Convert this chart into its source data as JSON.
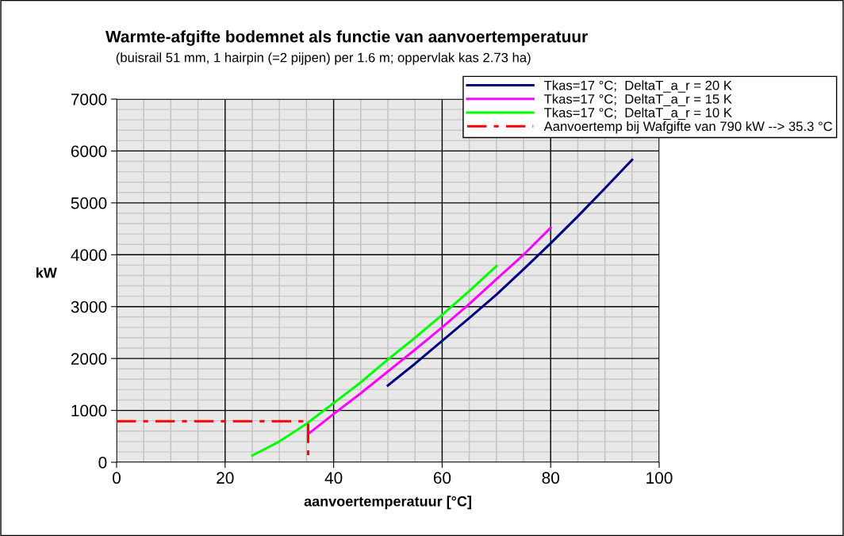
{
  "chart_data": {
    "type": "line",
    "title": "Warmte-afgifte bodemnet als functie van aanvoertemperatuur",
    "subtitle": "(buisrail 51 mm, 1 hairpin (=2 pijpen) per 1.6 m; oppervlak kas 2.73 ha)",
    "xlabel": "aanvoertemperatuur [°C]",
    "ylabel": "kW",
    "xlim": [
      0,
      100
    ],
    "xticks": [
      0,
      20,
      40,
      60,
      80,
      100
    ],
    "ylim": [
      0,
      7000
    ],
    "yticks": [
      0,
      1000,
      2000,
      3000,
      4000,
      5000,
      6000,
      7000
    ],
    "grid": true,
    "legend": "top right",
    "marker": "none",
    "series": [
      {
        "name": "Tkas=17 °C;  DeltaT_a_r = 20 K",
        "color": "#000080",
        "x": [
          50,
          55,
          60,
          65,
          70,
          75,
          80,
          85,
          90,
          95
        ],
        "values": [
          1480,
          1900,
          2340,
          2780,
          3230,
          3720,
          4220,
          4740,
          5280,
          5830
        ]
      },
      {
        "name": "Tkas=17 °C;  DeltaT_a_r = 15 K",
        "color": "#ff00ff",
        "x": [
          35.5,
          40,
          45,
          50,
          55,
          60,
          65,
          70,
          75,
          80
        ],
        "values": [
          560,
          930,
          1330,
          1750,
          2170,
          2600,
          3050,
          3530,
          4000,
          4520
        ]
      },
      {
        "name": "Tkas=17 °C;  DeltaT_a_r = 10 K",
        "color": "#00ff00",
        "x": [
          25,
          30,
          35,
          40,
          45,
          50,
          55,
          60,
          65,
          70
        ],
        "values": [
          130,
          400,
          740,
          1140,
          1540,
          1980,
          2400,
          2840,
          3300,
          3780
        ]
      },
      {
        "name": "Aanvoertemp bij Wafgifte van 790 kW --> 35.3 °C",
        "color": "#ff0000",
        "line_style": "dashdot",
        "x": [
          0,
          35.3,
          35.3
        ],
        "values": [
          790,
          790,
          0
        ]
      }
    ]
  }
}
